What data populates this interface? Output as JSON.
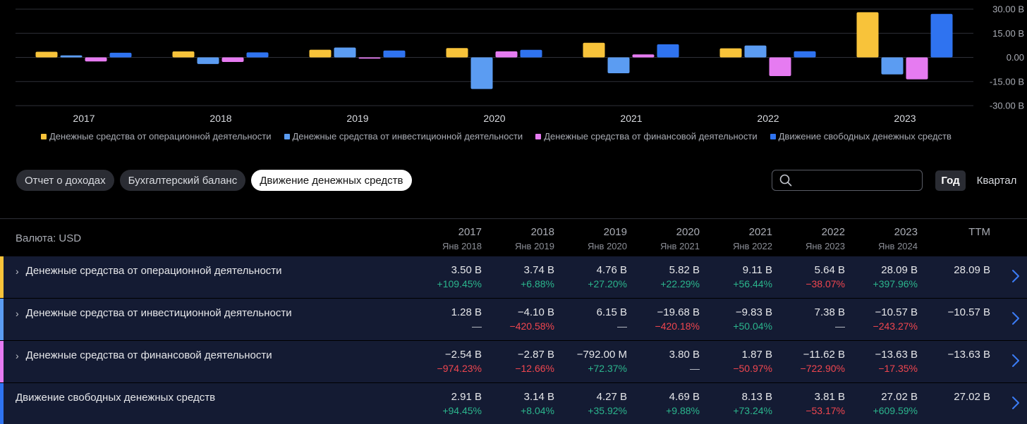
{
  "colors": {
    "operating": "#f8c33a",
    "investing": "#5b9cf2",
    "financing": "#e67bf1",
    "fcf": "#2f73f0",
    "positive": "#2bb58d",
    "negative": "#f0464f"
  },
  "chart_data": {
    "type": "bar",
    "categories": [
      "2017",
      "2018",
      "2019",
      "2020",
      "2021",
      "2022",
      "2023"
    ],
    "series": [
      {
        "name": "Денежные средства от операционной деятельности",
        "values": [
          3.5,
          3.74,
          4.76,
          5.82,
          9.11,
          5.64,
          28.09
        ]
      },
      {
        "name": "Денежные средства от инвестиционной деятельности",
        "values": [
          1.28,
          -4.1,
          6.15,
          -19.68,
          -9.83,
          7.38,
          -10.57
        ]
      },
      {
        "name": "Денежные средства от финансовой деятельности",
        "values": [
          -2.54,
          -2.87,
          -0.792,
          3.8,
          1.87,
          -11.62,
          -13.63
        ]
      },
      {
        "name": "Движение свободных денежных средств",
        "values": [
          2.91,
          3.14,
          4.27,
          4.69,
          8.13,
          3.81,
          27.02
        ]
      }
    ],
    "y_ticks": [
      "30.00 B",
      "15.00 B",
      "0.00",
      "-15.00 B",
      "-30.00 B"
    ],
    "y_tick_values": [
      30,
      15,
      0,
      -15,
      -30
    ],
    "ylim": [
      -30,
      30
    ],
    "grid": true,
    "legend_position": "bottom"
  },
  "tabs": [
    {
      "label": "Отчет о доходах",
      "active": false
    },
    {
      "label": "Бухгалтерский баланс",
      "active": false
    },
    {
      "label": "Движение денежных средств",
      "active": true
    }
  ],
  "search": {
    "value": "",
    "placeholder": ""
  },
  "period": {
    "year": "Год",
    "quarter": "Квартал"
  },
  "table": {
    "currency_label": "Валюта: USD",
    "columns": [
      {
        "year": "2017",
        "sub": "Янв 2018"
      },
      {
        "year": "2018",
        "sub": "Янв 2019"
      },
      {
        "year": "2019",
        "sub": "Янв 2020"
      },
      {
        "year": "2020",
        "sub": "Янв 2021"
      },
      {
        "year": "2021",
        "sub": "Янв 2022"
      },
      {
        "year": "2022",
        "sub": "Янв 2023"
      },
      {
        "year": "2023",
        "sub": "Янв 2024"
      },
      {
        "year": "TTM",
        "sub": ""
      }
    ],
    "rows": [
      {
        "label": "Денежные средства от операционной деятельности",
        "expandable": true,
        "chevron": "›",
        "values": [
          "3.50 B",
          "3.74 B",
          "4.76 B",
          "5.82 B",
          "9.11 B",
          "5.64 B",
          "28.09 B",
          "28.09 B"
        ],
        "changes": [
          "+109.45%",
          "+6.88%",
          "+27.20%",
          "+22.29%",
          "+56.44%",
          "−38.07%",
          "+397.96%",
          ""
        ]
      },
      {
        "label": "Денежные средства от инвестиционной деятельности",
        "expandable": true,
        "chevron": "›",
        "values": [
          "1.28 B",
          "−4.10 B",
          "6.15 B",
          "−19.68 B",
          "−9.83 B",
          "7.38 B",
          "−10.57 B",
          "−10.57 B"
        ],
        "changes": [
          "—",
          "−420.58%",
          "—",
          "−420.18%",
          "+50.04%",
          "—",
          "−243.27%",
          ""
        ]
      },
      {
        "label": "Денежные средства от финансовой деятельности",
        "expandable": true,
        "chevron": "›",
        "values": [
          "−2.54 B",
          "−2.87 B",
          "−792.00 M",
          "3.80 B",
          "1.87 B",
          "−11.62 B",
          "−13.63 B",
          "−13.63 B"
        ],
        "changes": [
          "−974.23%",
          "−12.66%",
          "+72.37%",
          "—",
          "−50.97%",
          "−722.90%",
          "−17.35%",
          ""
        ]
      },
      {
        "label": "Движение свободных денежных средств",
        "expandable": false,
        "chevron": "",
        "values": [
          "2.91 B",
          "3.14 B",
          "4.27 B",
          "4.69 B",
          "8.13 B",
          "3.81 B",
          "27.02 B",
          "27.02 B"
        ],
        "changes": [
          "+94.45%",
          "+8.04%",
          "+35.92%",
          "+9.88%",
          "+73.24%",
          "−53.17%",
          "+609.59%",
          ""
        ]
      }
    ]
  }
}
